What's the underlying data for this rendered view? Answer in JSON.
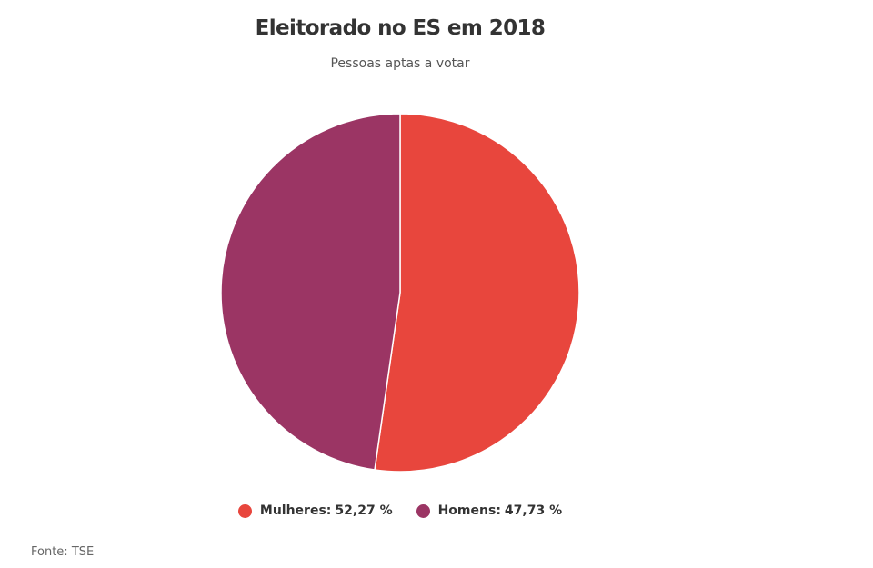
{
  "chart_data": {
    "type": "pie",
    "title": "Eleitorado no ES em 2018",
    "subtitle": "Pessoas aptas a votar",
    "slices": [
      {
        "label": "Mulheres",
        "value": 52.27,
        "display": "52,27 %",
        "color": "#e8463d"
      },
      {
        "label": "Homens",
        "value": 47.73,
        "display": "47,73 %",
        "color": "#9b3564"
      }
    ],
    "start": "12 o'clock",
    "direction": "clockwise",
    "legend_position": "bottom"
  },
  "source": "Fonte: TSE"
}
